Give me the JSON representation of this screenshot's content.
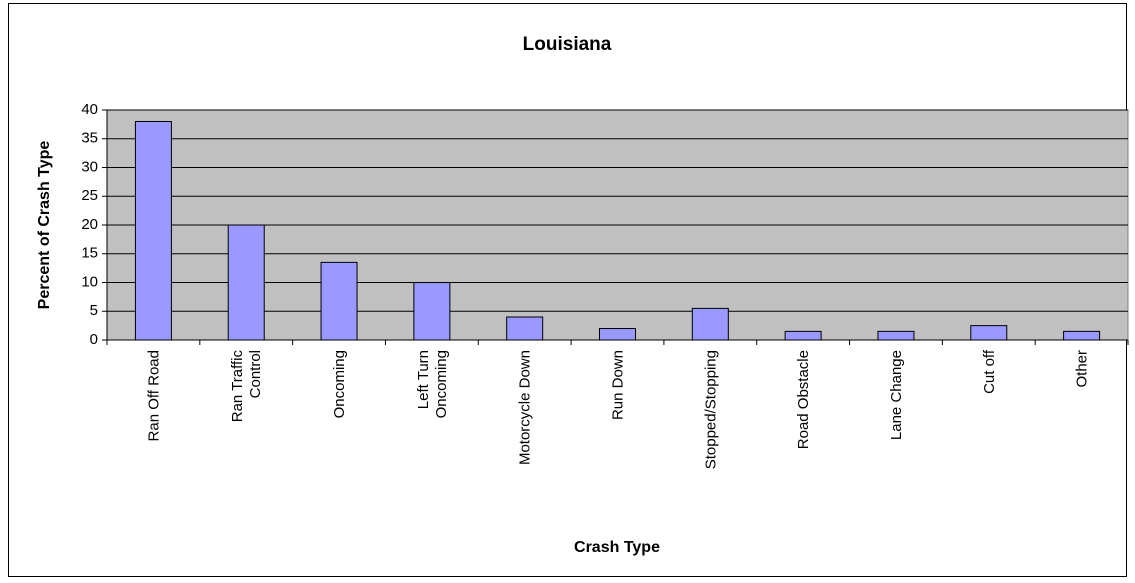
{
  "chart_data": {
    "type": "bar",
    "title": "Louisiana",
    "x_label": "Crash Type",
    "y_label": "Percent of Crash Type",
    "categories": [
      "Ran Off Road",
      "Ran Traffic\nControl",
      "Oncoming",
      "Left Turn\nOncoming",
      "Motorcycle Down",
      "Run Down",
      "Stopped/Stopping",
      "Road Obstacle",
      "Lane Change",
      "Cut off",
      "Other"
    ],
    "values": [
      38,
      20,
      13.5,
      10,
      4,
      2,
      5.5,
      1.5,
      1.5,
      2.5,
      1.5
    ],
    "color": "#9999ff",
    "ylim": [
      0,
      40
    ],
    "yticks": [
      0,
      5,
      10,
      15,
      20,
      25,
      30,
      35,
      40
    ],
    "grid": true
  }
}
